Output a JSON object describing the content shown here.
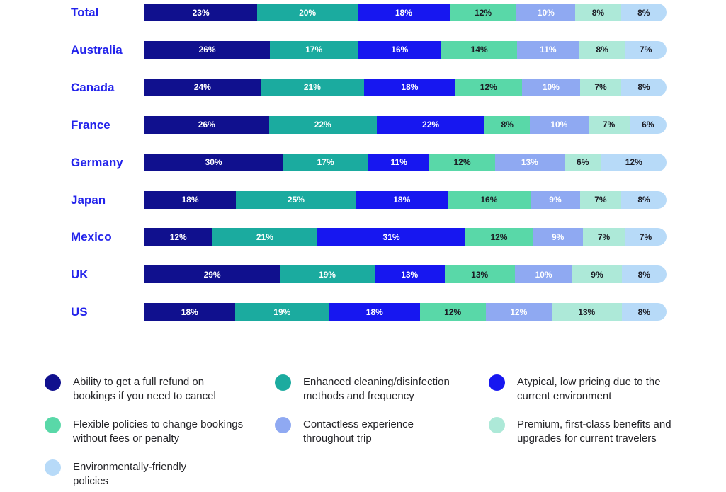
{
  "chart_data": {
    "type": "bar",
    "stacked": true,
    "orientation": "horizontal",
    "value_unit": "%",
    "grid": false,
    "legend_position": "bottom",
    "axis_line_color": "#e2e2e2",
    "category_label_color": "#2323eb",
    "categories": [
      "Total",
      "Australia",
      "Canada",
      "France",
      "Germany",
      "Japan",
      "Mexico",
      "UK",
      "US"
    ],
    "series": [
      {
        "name": "Ability to get a full refund on bookings if you need to cancel",
        "color": "#10108e",
        "label_color": "#ffffff",
        "values": [
          23,
          26,
          24,
          26,
          30,
          18,
          12,
          29,
          18
        ]
      },
      {
        "name": "Enhanced cleaning/disinfection methods and frequency",
        "color": "#1bab9f",
        "label_color": "#ffffff",
        "values": [
          20,
          17,
          21,
          22,
          17,
          25,
          21,
          19,
          19
        ]
      },
      {
        "name": "Atypical, low pricing due to the current environment",
        "color": "#1717f0",
        "label_color": "#ffffff",
        "values": [
          18,
          16,
          18,
          22,
          11,
          18,
          31,
          13,
          18
        ]
      },
      {
        "name": "Flexible policies to change bookings without fees or penalty",
        "color": "#59d8a8",
        "label_color": "#1c1c24",
        "values": [
          12,
          14,
          12,
          8,
          12,
          16,
          12,
          13,
          12
        ]
      },
      {
        "name": "Contactless experience throughout trip",
        "color": "#8fa9f2",
        "label_color": "#ffffff",
        "values": [
          10,
          11,
          10,
          10,
          13,
          9,
          9,
          10,
          12
        ]
      },
      {
        "name": "Premium, first-class benefits and upgrades for current travelers",
        "color": "#ade9d8",
        "label_color": "#1c1c24",
        "values": [
          8,
          8,
          7,
          7,
          6,
          7,
          7,
          9,
          13
        ]
      },
      {
        "name": "Environmentally-friendly policies",
        "color": "#b7daf8",
        "label_color": "#1c1c24",
        "values": [
          8,
          7,
          8,
          6,
          12,
          8,
          7,
          8,
          8
        ]
      }
    ]
  }
}
